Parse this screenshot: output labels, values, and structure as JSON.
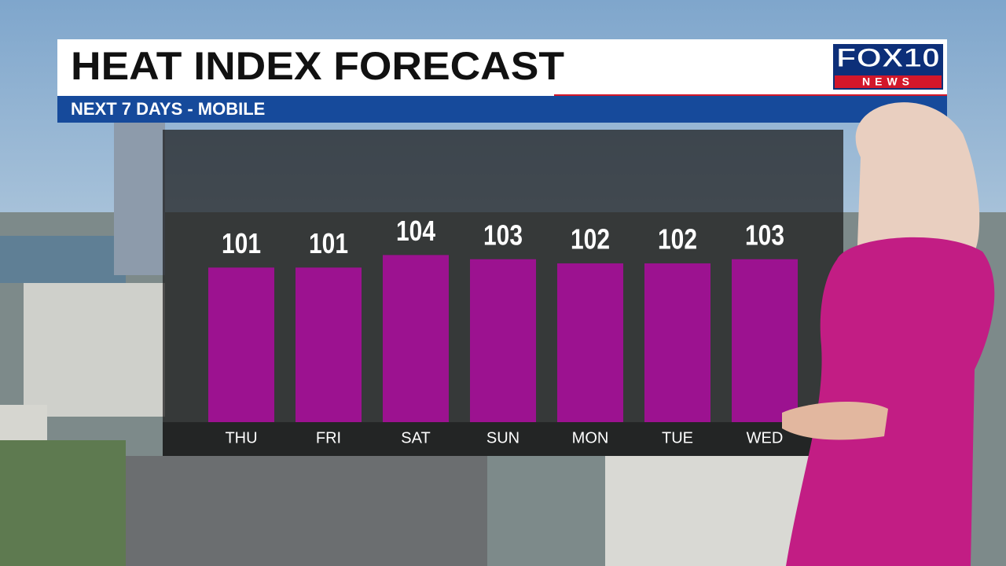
{
  "chart_data": {
    "type": "bar",
    "title": "HEAT INDEX FORECAST",
    "subtitle": "NEXT 7 DAYS - MOBILE",
    "logo": "FOX10",
    "logo_sub": "NEWS",
    "categories": [
      "THU",
      "FRI",
      "SAT",
      "SUN",
      "MON",
      "TUE",
      "WED"
    ],
    "values": [
      101,
      101,
      104,
      103,
      102,
      102,
      103
    ],
    "color": "#9c1290",
    "ylim": [
      64,
      134
    ]
  }
}
